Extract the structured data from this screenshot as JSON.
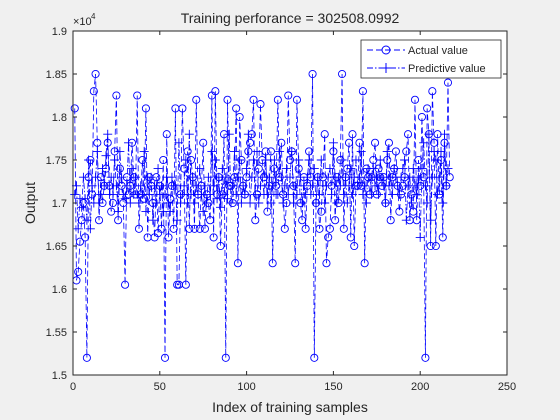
{
  "chart_data": {
    "type": "line",
    "title": "Training perforance = 302508.0992",
    "xlabel": "Index of training samples",
    "ylabel": "Output",
    "y_exponent_label": "×10",
    "y_exponent_power": "4",
    "y_scale_factor": 10000,
    "xlim": [
      0,
      250
    ],
    "ylim": [
      15000,
      19000
    ],
    "xticks": [
      0,
      50,
      100,
      150,
      200,
      250
    ],
    "yticks": [
      15000,
      15500,
      16000,
      16500,
      17000,
      17500,
      18000,
      18500,
      19000
    ],
    "ytick_labels": [
      "1.5",
      "1.55",
      "1.6",
      "1.65",
      "1.7",
      "1.75",
      "1.8",
      "1.85",
      "1.9"
    ],
    "grid": false,
    "legend_position": "top-right",
    "series": [
      {
        "name": "Actual value",
        "marker": "circle",
        "line_style": "dashed",
        "color": "#0000ff",
        "values": [
          18100,
          16100,
          16200,
          16550,
          16800,
          17000,
          16600,
          15200,
          17300,
          17500,
          17100,
          18300,
          18500,
          17700,
          16800,
          17300,
          17000,
          17200,
          17400,
          17700,
          17200,
          16900,
          17000,
          17600,
          18250,
          16800,
          17400,
          17200,
          17000,
          16050,
          17300,
          17100,
          17200,
          17700,
          17300,
          17100,
          18250,
          16700,
          17100,
          17500,
          17050,
          18100,
          16600,
          17300,
          17200,
          17000,
          16600,
          17300,
          16650,
          17200,
          16700,
          17500,
          15200,
          17800,
          16600,
          17050,
          17200,
          16700,
          18100,
          16050,
          16050,
          17100,
          18100,
          17400,
          16050,
          17600,
          16700,
          17500,
          17300,
          16700,
          18200,
          17100,
          16700,
          17200,
          17700,
          16700,
          17100,
          17000,
          16800,
          18250,
          16600,
          18300,
          17100,
          17300,
          16500,
          17100,
          17800,
          15200,
          18200,
          17200,
          17200,
          17000,
          17300,
          18100,
          16300,
          18000,
          17500,
          17200,
          17100,
          17300,
          17600,
          17700,
          17800,
          18200,
          16800,
          17100,
          17400,
          18150,
          17500,
          17300,
          17600,
          16900,
          17200,
          17600,
          16300,
          17400,
          17200,
          18200,
          17300,
          17700,
          17100,
          16700,
          17000,
          18250,
          17500,
          17600,
          17200,
          16300,
          18200,
          17400,
          17000,
          16800,
          17300,
          16700,
          17200,
          17600,
          17300,
          18500,
          15200,
          17000,
          17300,
          16700,
          16900,
          17300,
          17800,
          16300,
          16600,
          16700,
          17200,
          17600,
          16800,
          17300,
          17000,
          17500,
          18500,
          16700,
          17300,
          17400,
          17700,
          16600,
          17800,
          16500,
          17200,
          17200,
          17700,
          17200,
          18300,
          16300,
          17400,
          17300,
          17100,
          17300,
          17500,
          17700,
          17100,
          17400,
          17300,
          17200,
          17300,
          17000,
          17500,
          17700,
          16800,
          17300,
          17400,
          17600,
          17200,
          16900,
          17100,
          17200,
          17300,
          17600,
          17800,
          16800,
          17100,
          16900,
          18200,
          16800,
          17500,
          17200,
          18000,
          17300,
          15200,
          18100,
          17800,
          16500,
          18300,
          17700,
          16500,
          17800,
          17100,
          17500,
          16600,
          17700,
          17200,
          18400,
          17300
        ]
      },
      {
        "name": "Predictive value",
        "marker": "plus",
        "line_style": "dashdot",
        "color": "#0000ff",
        "values": [
          17100,
          17200,
          16700,
          17050,
          16950,
          17300,
          17050,
          16800,
          17500,
          16700,
          17200,
          17000,
          17300,
          17600,
          17000,
          17100,
          17400,
          17200,
          17550,
          17800,
          17100,
          17300,
          17100,
          17500,
          17200,
          16900,
          17600,
          17300,
          17100,
          17050,
          17200,
          17700,
          17000,
          17400,
          17100,
          17300,
          17100,
          17000,
          17200,
          17100,
          17600,
          16900,
          17300,
          17100,
          17300,
          16800,
          17200,
          17000,
          17400,
          17100,
          17200,
          16900,
          17100,
          17300,
          17000,
          16900,
          17300,
          17200,
          17200,
          16800,
          17700,
          17000,
          17100,
          17200,
          17500,
          17000,
          17800,
          17100,
          17300,
          17000,
          17200,
          17100,
          17400,
          17100,
          16900,
          17200,
          17000,
          17300,
          17100,
          17600,
          17200,
          17500,
          17050,
          17300,
          16950,
          17400,
          17100,
          17300,
          17050,
          17800,
          17000,
          17200,
          17600,
          17100,
          17300,
          17500,
          17000,
          17200,
          17100,
          17400,
          17800,
          17000,
          17300,
          17500,
          17100,
          17600,
          17000,
          17200,
          17300,
          17100,
          17500,
          17100,
          17300,
          17000,
          17200,
          17500,
          17100,
          17100,
          17600,
          17300,
          17000,
          17200,
          17400,
          17100,
          17300,
          17600,
          17000,
          17200,
          17100,
          17500,
          17300,
          17000,
          17200,
          17100,
          17300,
          17500,
          17100,
          17200,
          17400,
          17000,
          17300,
          17100,
          17500,
          17200,
          17000,
          17200,
          17300,
          17400,
          17100,
          17700,
          17300,
          17000,
          17300,
          17200,
          17500,
          17100,
          17300,
          17000,
          17200,
          17400,
          17100,
          17300,
          17500,
          17200,
          17300,
          17600,
          17100,
          17200,
          17000,
          17400,
          17300,
          17100,
          17400,
          17200,
          17300,
          17100,
          17500,
          17300,
          17200,
          17000,
          17600,
          17200,
          17300,
          17100,
          17400,
          17300,
          17200,
          17100,
          17300,
          17400,
          17500,
          16800,
          17200,
          17300,
          17000,
          17400,
          17200,
          17100,
          17300,
          16600,
          17400,
          17700,
          17200,
          17000,
          17800,
          16800,
          17300,
          17600,
          17500,
          17100,
          17300,
          17600,
          17000,
          17800,
          17200,
          17400
        ]
      }
    ]
  }
}
